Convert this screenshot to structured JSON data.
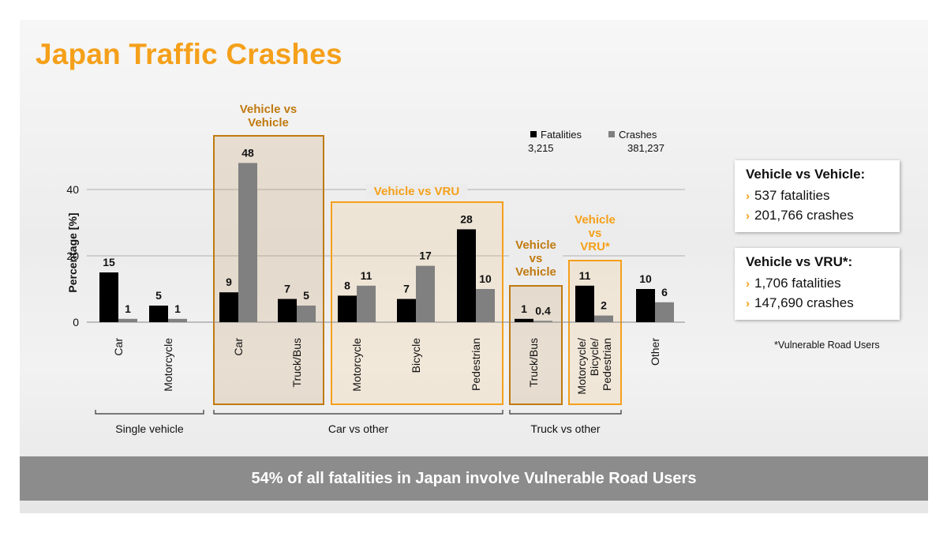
{
  "title": "Japan Traffic Crashes",
  "colors": {
    "accent": "#f5a01a",
    "dark_accent": "#c07a10",
    "fatalities": "#000000",
    "crashes": "#808080"
  },
  "legend": {
    "fatalities_label": "Fatalities",
    "fatalities_total": "3,215",
    "crashes_label": "Crashes",
    "crashes_total": "381,237"
  },
  "chart_data": {
    "type": "bar",
    "ylabel": "Percentage [%]",
    "ylim": [
      0,
      48
    ],
    "yticks": [
      0,
      20,
      40
    ],
    "categories": [
      "Car",
      "Motorcycle",
      "Car",
      "Truck/Bus",
      "Motorcycle",
      "Bicycle",
      "Pedestrian",
      "Truck/Bus",
      "Motorcycle/\nBicycle/\nPedestrian",
      "Other"
    ],
    "series": [
      {
        "name": "Fatalities",
        "values": [
          15,
          5,
          9,
          7,
          8,
          7,
          28,
          1,
          11,
          10
        ],
        "labels": [
          "15",
          "5",
          "9",
          "7",
          "8",
          "7",
          "28",
          "1",
          "11",
          "10"
        ]
      },
      {
        "name": "Crashes",
        "values": [
          1,
          1,
          48,
          5,
          11,
          17,
          10,
          0.4,
          2,
          6
        ],
        "labels": [
          "1",
          "1",
          "48",
          "5",
          "11",
          "17",
          "10",
          "0.4",
          "2",
          "6"
        ]
      }
    ],
    "groups": [
      {
        "label": "Single vehicle",
        "from": 0,
        "to": 1
      },
      {
        "label": "Car vs other",
        "from": 2,
        "to": 6
      },
      {
        "label": "Truck vs other",
        "from": 7,
        "to": 9
      }
    ],
    "boxes": [
      {
        "label": "Vehicle vs\nVehicle",
        "from": 2,
        "to": 3,
        "style": "dark"
      },
      {
        "label": "Vehicle vs VRU",
        "from": 4,
        "to": 6,
        "style": "light"
      },
      {
        "label": "Vehicle\nvs\nVehicle",
        "from": 7,
        "to": 7,
        "style": "dark"
      },
      {
        "label": "Vehicle\nvs\nVRU*",
        "from": 8,
        "to": 8,
        "style": "light"
      }
    ]
  },
  "summary": {
    "vv": {
      "heading": "Vehicle vs Vehicle:",
      "fatalities": "537 fatalities",
      "crashes": "201,766 crashes"
    },
    "vru": {
      "heading": "Vehicle vs VRU*:",
      "fatalities": "1,706 fatalities",
      "crashes": "147,690 crashes"
    },
    "bullet": "›"
  },
  "footnote": "*Vulnerable Road Users",
  "banner": "54% of all fatalities in Japan involve Vulnerable Road Users"
}
